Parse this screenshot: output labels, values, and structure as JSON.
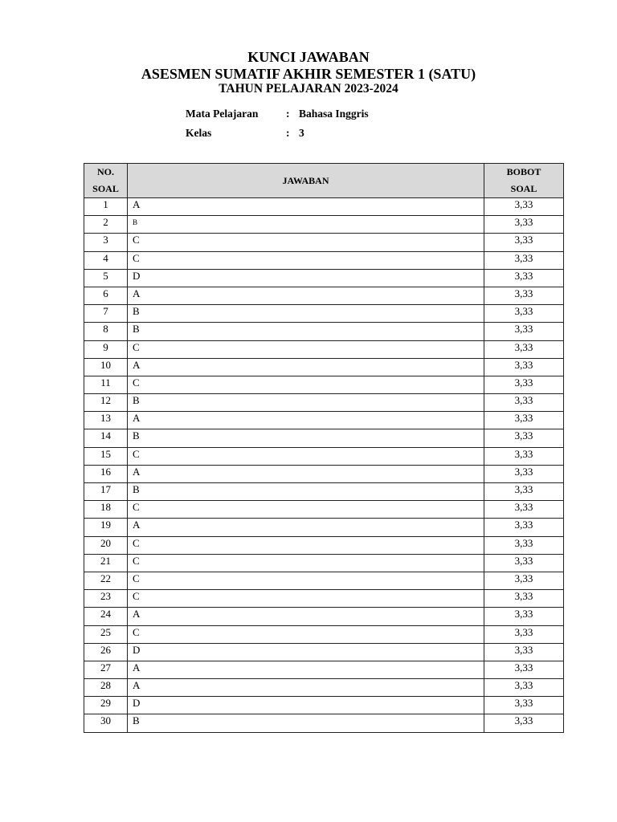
{
  "header": {
    "title": "KUNCI JAWABAN",
    "subtitle": "ASESMEN SUMATIF AKHIR SEMESTER 1 (SATU)",
    "year": "TAHUN PELAJARAN 2023-2024"
  },
  "meta": {
    "subject_label": "Mata Pelajaran",
    "subject_value": "Bahasa Inggris",
    "class_label": "Kelas",
    "class_value": "3",
    "separator": ":"
  },
  "table": {
    "headers": {
      "no_line1": "NO.",
      "no_line2": "SOAL",
      "answer": "JAWABAN",
      "weight_line1": "BOBOT",
      "weight_line2": "SOAL"
    },
    "rows": [
      {
        "no": "1",
        "answer": "A",
        "weight": "3,33"
      },
      {
        "no": "2",
        "answer": "B",
        "weight": "3,33"
      },
      {
        "no": "3",
        "answer": "C",
        "weight": "3,33"
      },
      {
        "no": "4",
        "answer": "C",
        "weight": "3,33"
      },
      {
        "no": "5",
        "answer": "D",
        "weight": "3,33"
      },
      {
        "no": "6",
        "answer": "A",
        "weight": "3,33"
      },
      {
        "no": "7",
        "answer": "B",
        "weight": "3,33"
      },
      {
        "no": "8",
        "answer": "B",
        "weight": "3,33"
      },
      {
        "no": "9",
        "answer": "C",
        "weight": "3,33"
      },
      {
        "no": "10",
        "answer": "A",
        "weight": "3,33"
      },
      {
        "no": "11",
        "answer": "C",
        "weight": "3,33"
      },
      {
        "no": "12",
        "answer": "B",
        "weight": "3,33"
      },
      {
        "no": "13",
        "answer": "A",
        "weight": "3,33"
      },
      {
        "no": "14",
        "answer": "B",
        "weight": "3,33"
      },
      {
        "no": "15",
        "answer": "C",
        "weight": "3,33"
      },
      {
        "no": "16",
        "answer": "A",
        "weight": "3,33"
      },
      {
        "no": "17",
        "answer": "B",
        "weight": "3,33"
      },
      {
        "no": "18",
        "answer": "C",
        "weight": "3,33"
      },
      {
        "no": "19",
        "answer": "A",
        "weight": "3,33"
      },
      {
        "no": "20",
        "answer": "C",
        "weight": "3,33"
      },
      {
        "no": "21",
        "answer": "C",
        "weight": "3,33"
      },
      {
        "no": "22",
        "answer": "C",
        "weight": "3,33"
      },
      {
        "no": "23",
        "answer": "C",
        "weight": "3,33"
      },
      {
        "no": "24",
        "answer": "A",
        "weight": "3,33"
      },
      {
        "no": "25",
        "answer": "C",
        "weight": "3,33"
      },
      {
        "no": "26",
        "answer": "D",
        "weight": "3,33"
      },
      {
        "no": "27",
        "answer": "A",
        "weight": "3,33"
      },
      {
        "no": "28",
        "answer": "A",
        "weight": "3,33"
      },
      {
        "no": "29",
        "answer": "D",
        "weight": "3,33"
      },
      {
        "no": "30",
        "answer": "B",
        "weight": "3,33"
      }
    ]
  }
}
